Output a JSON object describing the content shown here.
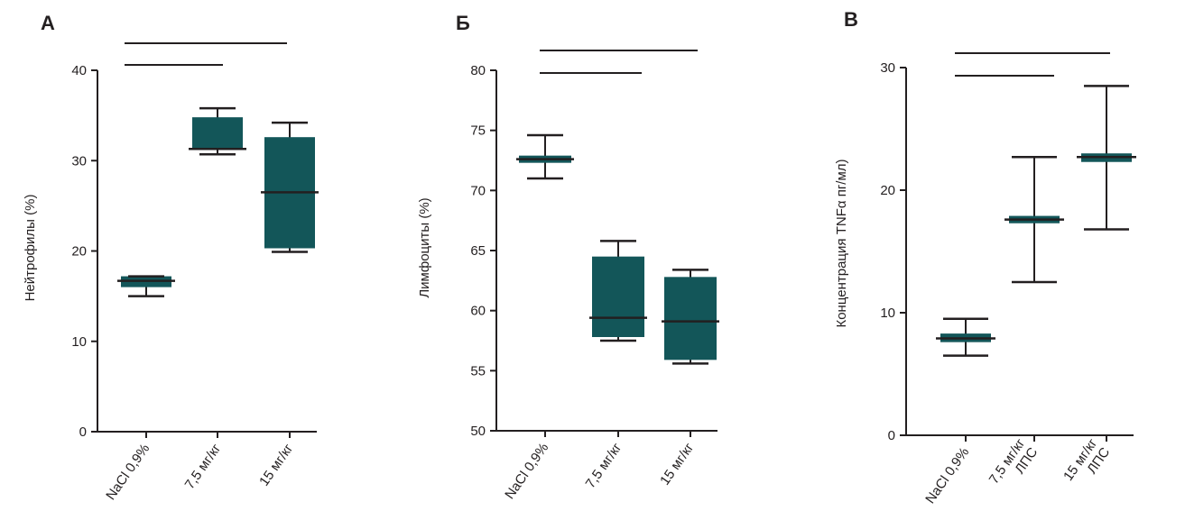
{
  "chart_data": [
    {
      "type": "box",
      "panel_label": "А",
      "ylabel": "Нейтрофилы (%)",
      "ylim": [
        0,
        40
      ],
      "yticks": [
        0,
        10,
        20,
        30,
        40
      ],
      "categories": [
        [
          "NaCl 0,9%"
        ],
        [
          "7,5 мг/кг"
        ],
        [
          "15 мг/кг"
        ]
      ],
      "boxes": [
        {
          "whisker_low": 15.0,
          "q1": 16.0,
          "median": 16.7,
          "q3": 17.2,
          "whisker_high": 17.2
        },
        {
          "whisker_low": 30.7,
          "q1": 31.3,
          "median": 31.3,
          "q3": 34.8,
          "whisker_high": 35.8
        },
        {
          "whisker_low": 19.9,
          "q1": 20.3,
          "median": 26.5,
          "q3": 32.6,
          "whisker_high": 34.2
        }
      ],
      "significance_brackets": [
        [
          0,
          1
        ],
        [
          0,
          2
        ]
      ]
    },
    {
      "type": "box",
      "panel_label": "Б",
      "ylabel": "Лимфоциты (%)",
      "ylim": [
        50,
        80
      ],
      "yticks": [
        50,
        55,
        60,
        65,
        70,
        75,
        80
      ],
      "categories": [
        [
          "NaCl 0,9%"
        ],
        [
          "7,5 мг/кг"
        ],
        [
          "15 мг/кг"
        ]
      ],
      "boxes": [
        {
          "whisker_low": 71.0,
          "q1": 72.3,
          "median": 72.6,
          "q3": 72.9,
          "whisker_high": 74.6
        },
        {
          "whisker_low": 57.5,
          "q1": 57.8,
          "median": 59.4,
          "q3": 64.5,
          "whisker_high": 65.8
        },
        {
          "whisker_low": 55.6,
          "q1": 55.9,
          "median": 59.1,
          "q3": 62.8,
          "whisker_high": 63.4
        }
      ],
      "significance_brackets": [
        [
          0,
          1
        ],
        [
          0,
          2
        ]
      ]
    },
    {
      "type": "box",
      "panel_label": "В",
      "ylabel": "Концентрация TNFα пг/мл)",
      "ylim": [
        0,
        30
      ],
      "yticks": [
        0,
        10,
        20,
        30
      ],
      "categories": [
        [
          "NaCl 0,9%"
        ],
        [
          "7,5 мг/кг",
          "ЛПС"
        ],
        [
          "15 мг/кг",
          "ЛПС"
        ]
      ],
      "boxes": [
        {
          "whisker_low": 6.5,
          "q1": 7.6,
          "median": 7.9,
          "q3": 8.3,
          "whisker_high": 9.5
        },
        {
          "whisker_low": 12.5,
          "q1": 17.3,
          "median": 17.6,
          "q3": 17.9,
          "whisker_high": 22.7
        },
        {
          "whisker_low": 16.8,
          "q1": 22.3,
          "median": 22.7,
          "q3": 23.0,
          "whisker_high": 28.5
        }
      ],
      "significance_brackets": [
        [
          0,
          1
        ],
        [
          0,
          2
        ]
      ]
    }
  ],
  "colors": {
    "box_fill": "#135659",
    "ink": "#231f20",
    "background": "#ffffff"
  }
}
